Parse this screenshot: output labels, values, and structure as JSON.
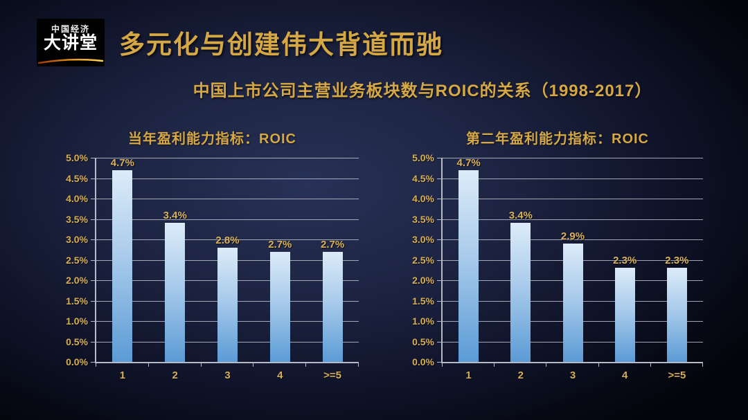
{
  "logo": {
    "line1": "中国经济",
    "line2": "大讲堂"
  },
  "header": {
    "title": "多元化与创建伟大背道而驰"
  },
  "subtitle": "中国上市公司主营业务板块数与ROIC的关系（1998-2017）",
  "chart_data": [
    {
      "type": "bar",
      "title": "当年盈利能力指标：ROIC",
      "categories": [
        "1",
        "2",
        "3",
        "4",
        ">=5"
      ],
      "values": [
        4.7,
        3.4,
        2.8,
        2.7,
        2.7
      ],
      "value_labels": [
        "4.7%",
        "3.4%",
        "2.8%",
        "2.7%",
        "2.7%"
      ],
      "xlabel": "",
      "ylabel": "",
      "ylim": [
        0,
        5
      ],
      "ytick_labels": [
        "0.0%",
        "0.5%",
        "1.0%",
        "1.5%",
        "2.0%",
        "2.5%",
        "3.0%",
        "3.5%",
        "4.0%",
        "4.5%",
        "5.0%"
      ],
      "grid": "on",
      "legend": "none"
    },
    {
      "type": "bar",
      "title": "第二年盈利能力指标：ROIC",
      "categories": [
        "1",
        "2",
        "3",
        "4",
        ">=5"
      ],
      "values": [
        4.7,
        3.4,
        2.9,
        2.3,
        2.3
      ],
      "value_labels": [
        "4.7%",
        "3.4%",
        "2.9%",
        "2.3%",
        "2.3%"
      ],
      "xlabel": "",
      "ylabel": "",
      "ylim": [
        0,
        5
      ],
      "ytick_labels": [
        "0.0%",
        "0.5%",
        "1.0%",
        "1.5%",
        "2.0%",
        "2.5%",
        "3.0%",
        "3.5%",
        "4.0%",
        "4.5%",
        "5.0%"
      ],
      "grid": "on",
      "legend": "none"
    }
  ],
  "colors": {
    "title_gold": "#d5a845",
    "axis_label_gold": "#d6ae56",
    "data_label_gold": "#d9b25c",
    "gridline": "#b6bcc7",
    "bar_top": "#dcebf8",
    "bar_bottom": "#5b9bd5",
    "background_center": "#283157",
    "background_edge": "#04050c",
    "logo_swoosh_left": "#9c3505",
    "logo_swoosh_right": "#ffd65e"
  }
}
